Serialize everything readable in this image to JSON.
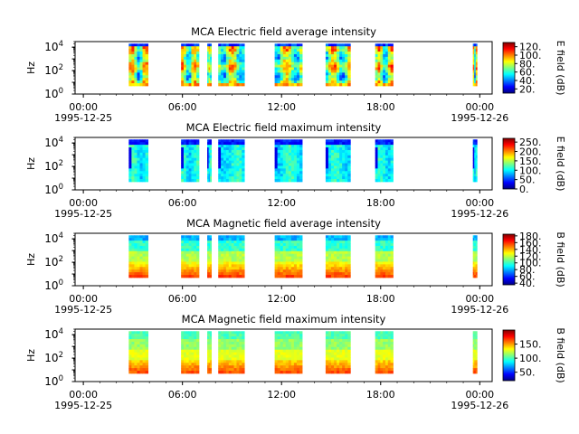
{
  "colors": {
    "colormap_stops": [
      "#00007f",
      "#0000ff",
      "#007fff",
      "#00ffff",
      "#7fff7f",
      "#ffff00",
      "#ff7f00",
      "#ff0000",
      "#7f0000"
    ]
  },
  "x_axis": {
    "ticks": [
      {
        "time": "1995-12-25T00:00",
        "label": "00:00",
        "date_label": "1995-12-25"
      },
      {
        "time": "1995-12-25T06:00",
        "label": "06:00",
        "date_label": ""
      },
      {
        "time": "1995-12-25T12:00",
        "label": "12:00",
        "date_label": ""
      },
      {
        "time": "1995-12-25T18:00",
        "label": "18:00",
        "date_label": ""
      },
      {
        "time": "1995-12-26T00:00",
        "label": "00:00",
        "date_label": "1995-12-26"
      }
    ],
    "range": [
      "1995-12-24T23:30",
      "1995-12-26T00:45"
    ]
  },
  "chart_data": [
    {
      "type": "heatmap",
      "title": "MCA  Electric field average intensity",
      "ylabel": "Hz",
      "yscale": "log",
      "ylim": [
        1,
        30000
      ],
      "y_ticks": [
        {
          "value": 1,
          "label": "10",
          "exp": "0"
        },
        {
          "value": 100,
          "label": "10",
          "exp": "2"
        },
        {
          "value": 10000,
          "label": "10",
          "exp": "4"
        }
      ],
      "colorbar": {
        "label": "E field (dB)",
        "range": [
          10,
          130
        ],
        "ticks": [
          20,
          40,
          60,
          80,
          100,
          120
        ],
        "tick_labels": [
          "20.",
          "40.",
          "60.",
          "80.",
          "100.",
          "120."
        ]
      },
      "data_intervals": [
        [
          "1995-12-25T02:45",
          "1995-12-25T03:55"
        ],
        [
          "1995-12-25T05:55",
          "1995-12-25T07:00"
        ],
        [
          "1995-12-25T07:30",
          "1995-12-25T07:45"
        ],
        [
          "1995-12-25T08:10",
          "1995-12-25T09:45"
        ],
        [
          "1995-12-25T11:35",
          "1995-12-25T13:15"
        ],
        [
          "1995-12-25T14:40",
          "1995-12-25T16:10"
        ],
        [
          "1995-12-25T17:40",
          "1995-12-25T18:45"
        ],
        [
          "1995-12-25T23:35",
          "1995-12-25T23:50"
        ]
      ],
      "intensity_profile": "e_avg"
    },
    {
      "type": "heatmap",
      "title": "MCA  Electric field maximum intensity",
      "ylabel": "Hz",
      "yscale": "log",
      "ylim": [
        1,
        30000
      ],
      "y_ticks": [
        {
          "value": 1,
          "label": "10",
          "exp": "0"
        },
        {
          "value": 100,
          "label": "10",
          "exp": "2"
        },
        {
          "value": 10000,
          "label": "10",
          "exp": "4"
        }
      ],
      "colorbar": {
        "label": "E field (dB)",
        "range": [
          0,
          270
        ],
        "ticks": [
          0,
          50,
          100,
          150,
          200,
          250
        ],
        "tick_labels": [
          "0.",
          "50.",
          "100.",
          "150.",
          "200.",
          "250."
        ]
      },
      "data_intervals": [
        [
          "1995-12-25T02:45",
          "1995-12-25T03:55"
        ],
        [
          "1995-12-25T05:55",
          "1995-12-25T07:00"
        ],
        [
          "1995-12-25T07:30",
          "1995-12-25T07:45"
        ],
        [
          "1995-12-25T08:10",
          "1995-12-25T09:45"
        ],
        [
          "1995-12-25T11:35",
          "1995-12-25T13:15"
        ],
        [
          "1995-12-25T14:40",
          "1995-12-25T16:10"
        ],
        [
          "1995-12-25T17:40",
          "1995-12-25T18:45"
        ],
        [
          "1995-12-25T23:35",
          "1995-12-25T23:50"
        ]
      ],
      "intensity_profile": "e_max"
    },
    {
      "type": "heatmap",
      "title": "MCA  Magnetic field average intensity",
      "ylabel": "Hz",
      "yscale": "log",
      "ylim": [
        1,
        30000
      ],
      "y_ticks": [
        {
          "value": 1,
          "label": "10",
          "exp": "0"
        },
        {
          "value": 100,
          "label": "10",
          "exp": "2"
        },
        {
          "value": 10000,
          "label": "10",
          "exp": "4"
        }
      ],
      "colorbar": {
        "label": "B field (dB)",
        "range": [
          35,
          185
        ],
        "ticks": [
          40,
          60,
          80,
          100,
          120,
          140,
          160,
          180
        ],
        "tick_labels": [
          "40.",
          "60.",
          "80.",
          "100.",
          "120.",
          "140.",
          "160.",
          "180."
        ]
      },
      "data_intervals": [
        [
          "1995-12-25T02:45",
          "1995-12-25T03:55"
        ],
        [
          "1995-12-25T05:55",
          "1995-12-25T07:00"
        ],
        [
          "1995-12-25T07:30",
          "1995-12-25T07:45"
        ],
        [
          "1995-12-25T08:10",
          "1995-12-25T09:45"
        ],
        [
          "1995-12-25T11:35",
          "1995-12-25T13:15"
        ],
        [
          "1995-12-25T14:40",
          "1995-12-25T16:10"
        ],
        [
          "1995-12-25T17:40",
          "1995-12-25T18:45"
        ],
        [
          "1995-12-25T23:35",
          "1995-12-25T23:50"
        ]
      ],
      "intensity_profile": "b_avg"
    },
    {
      "type": "heatmap",
      "title": "MCA  Magnetic field maximum intensity",
      "ylabel": "Hz",
      "yscale": "log",
      "ylim": [
        1,
        30000
      ],
      "y_ticks": [
        {
          "value": 1,
          "label": "10",
          "exp": "0"
        },
        {
          "value": 100,
          "label": "10",
          "exp": "2"
        },
        {
          "value": 10000,
          "label": "10",
          "exp": "4"
        }
      ],
      "colorbar": {
        "label": "B field (dB)",
        "range": [
          20,
          200
        ],
        "ticks": [
          50,
          100,
          150
        ],
        "tick_labels": [
          "50.",
          "100.",
          "150."
        ]
      },
      "data_intervals": [
        [
          "1995-12-25T02:45",
          "1995-12-25T03:55"
        ],
        [
          "1995-12-25T05:55",
          "1995-12-25T07:00"
        ],
        [
          "1995-12-25T07:30",
          "1995-12-25T07:45"
        ],
        [
          "1995-12-25T08:10",
          "1995-12-25T09:45"
        ],
        [
          "1995-12-25T11:35",
          "1995-12-25T13:15"
        ],
        [
          "1995-12-25T14:40",
          "1995-12-25T16:10"
        ],
        [
          "1995-12-25T17:40",
          "1995-12-25T18:45"
        ],
        [
          "1995-12-25T23:35",
          "1995-12-25T23:50"
        ]
      ],
      "intensity_profile": "b_max"
    }
  ]
}
